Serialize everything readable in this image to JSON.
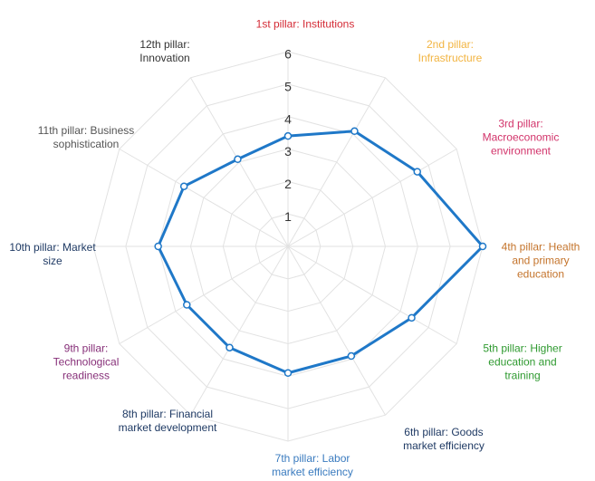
{
  "chart_data": {
    "type": "radar",
    "categories": [
      "1st pillar: Institutions",
      "2nd pillar: Infrastructure",
      "3rd pillar: Macroeconomic environment",
      "4th pillar: Health and primary education",
      "5th pillar: Higher education and training",
      "6th pillar: Goods market efficiency",
      "7th pillar: Labor market efficiency",
      "8th pillar: Financial market development",
      "9th pillar: Technological readiness",
      "10th pillar: Market size",
      "11th pillar: Business sophistication",
      "12th pillar: Innovation"
    ],
    "category_colors": [
      "#d42a35",
      "#f2b441",
      "#d2336a",
      "#c4742c",
      "#2f9a30",
      "#1f3a64",
      "#3a7bbf",
      "#1f3a64",
      "#873079",
      "#1f3a64",
      "#555555",
      "#333333"
    ],
    "values": [
      3.4,
      4.1,
      4.6,
      6.0,
      4.4,
      3.9,
      3.9,
      3.6,
      3.6,
      4.0,
      3.7,
      3.1
    ],
    "color": "#1f78c8",
    "ylim": [
      0,
      6
    ],
    "yticks": [
      1,
      2,
      3,
      4,
      5,
      6
    ],
    "grid": true
  }
}
